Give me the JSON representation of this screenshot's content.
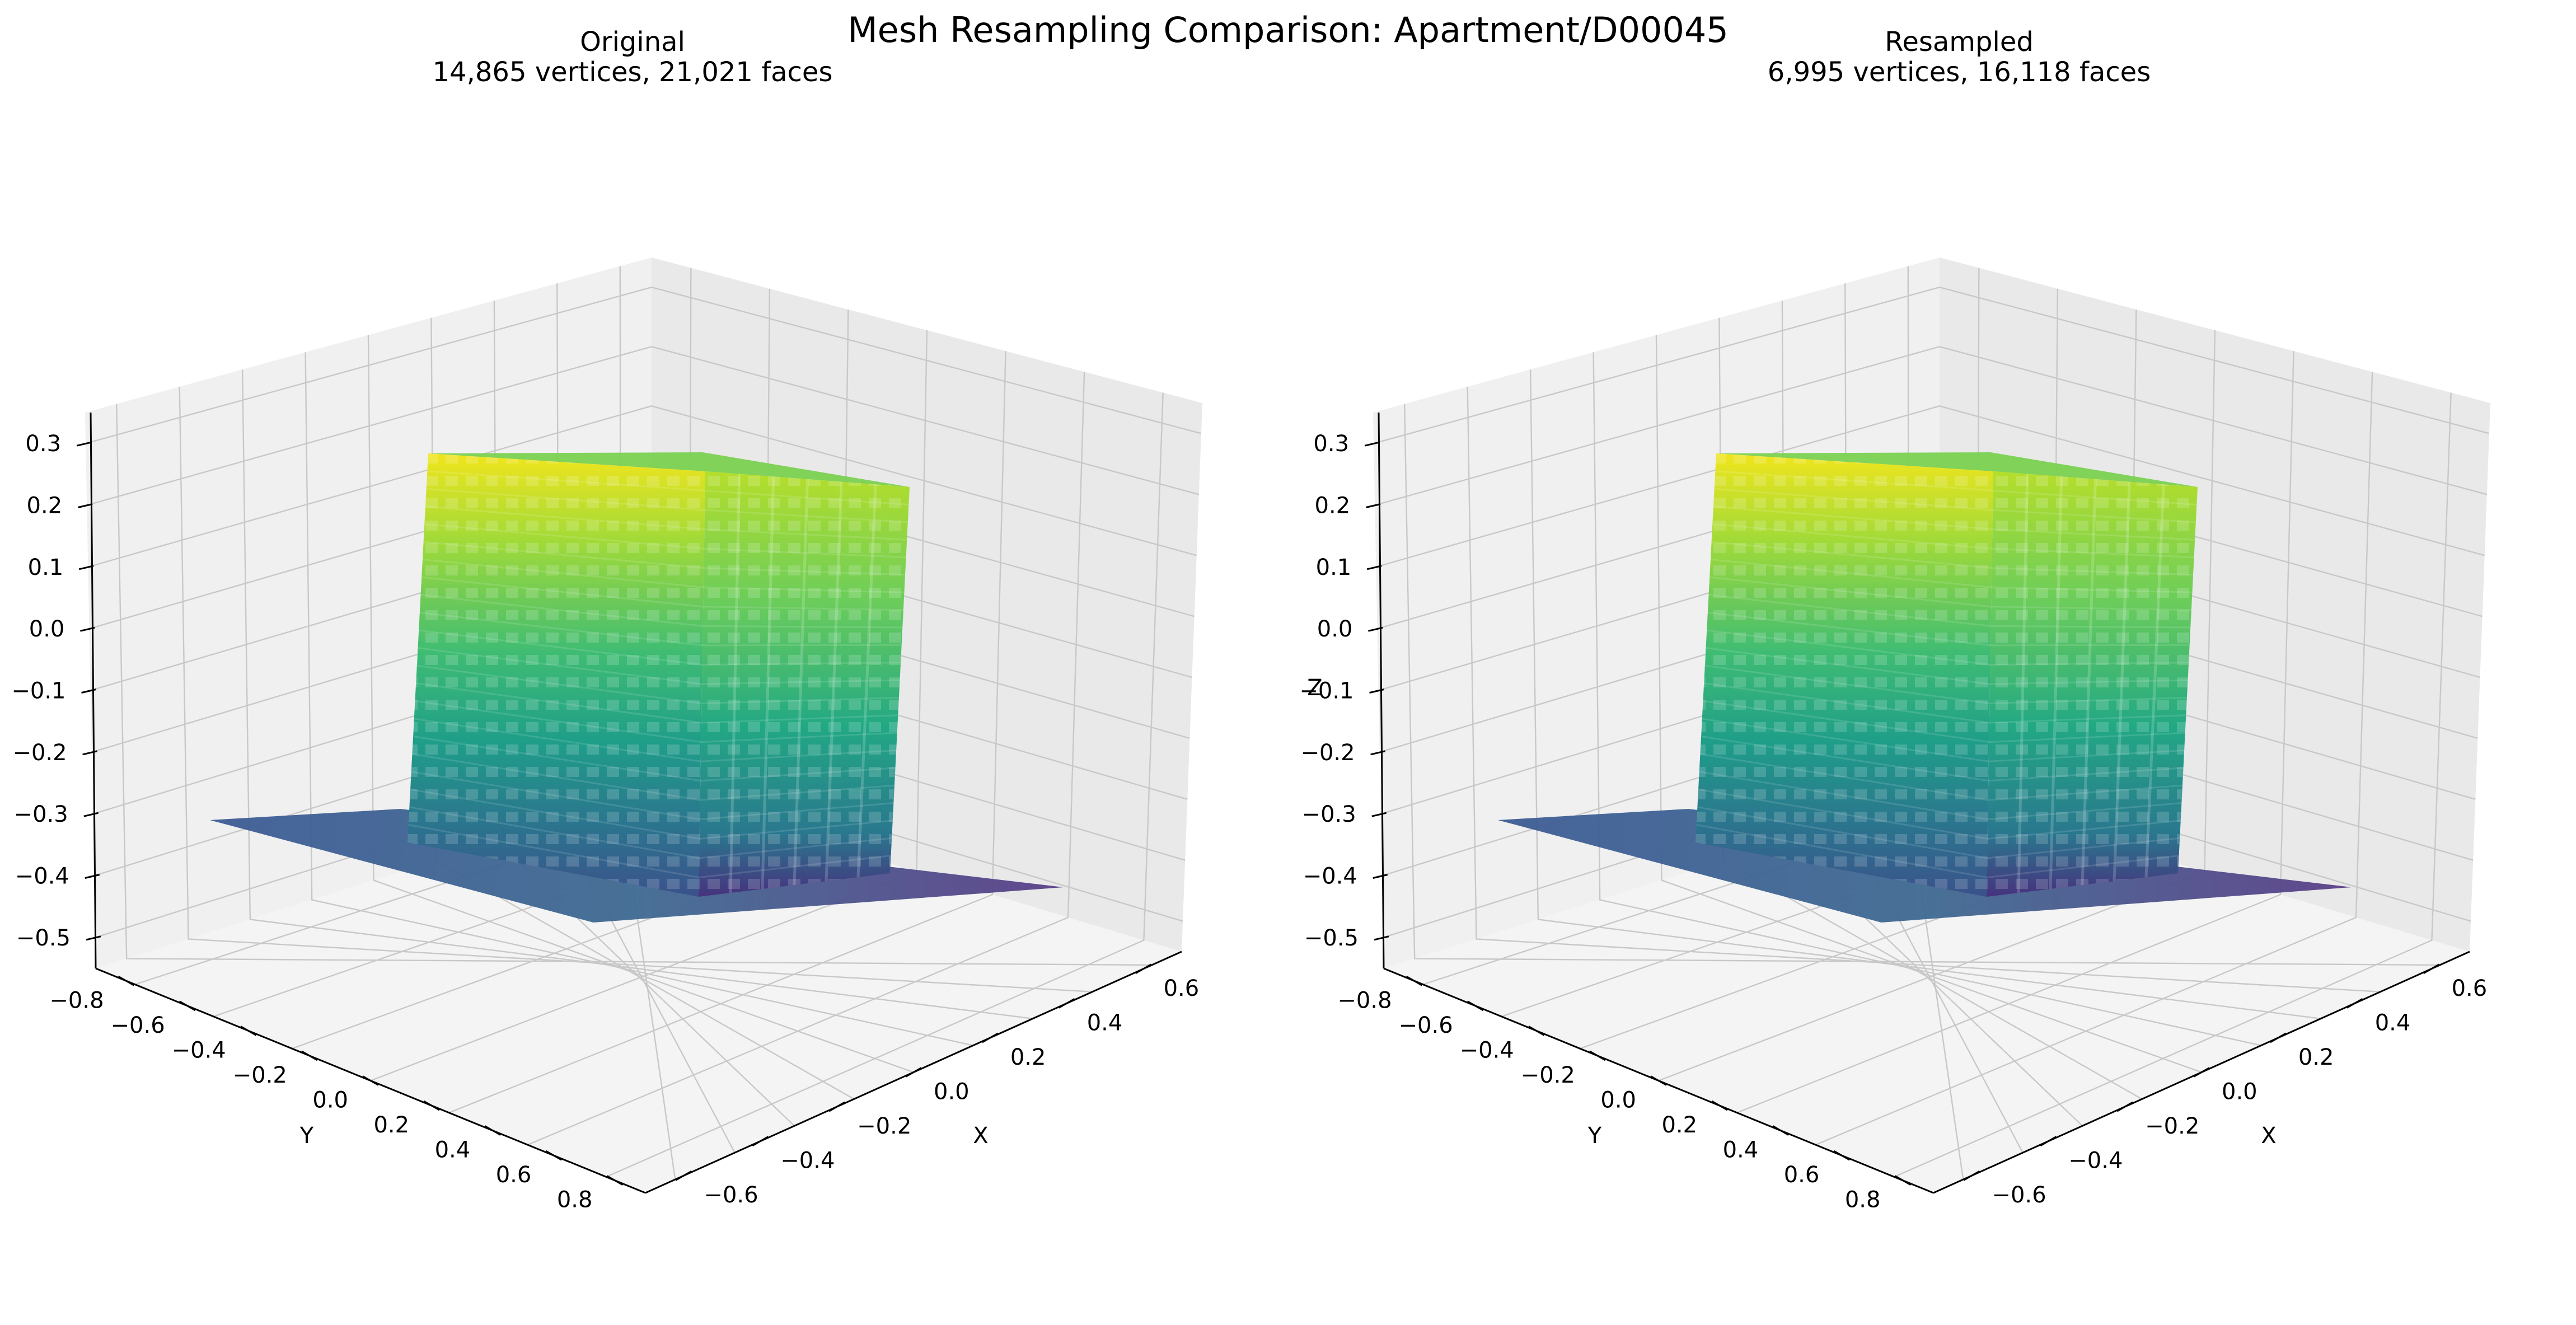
{
  "figure": {
    "title": "Mesh Resampling Comparison: Apartment/D00045"
  },
  "chart_data": [
    {
      "type": "surface3d",
      "panel": "left",
      "title": "Original",
      "subtitle": "14,865 vertices, 21,021 faces",
      "xlabel": "X",
      "ylabel": "Y",
      "zlabel": "",
      "x_ticks": [
        "−0.6",
        "−0.4",
        "−0.2",
        "0.0",
        "0.2",
        "0.4",
        "0.6"
      ],
      "y_ticks": [
        "−0.8",
        "−0.6",
        "−0.4",
        "−0.2",
        "0.0",
        "0.2",
        "0.4",
        "0.6",
        "0.8"
      ],
      "z_ticks": [
        "−0.5",
        "−0.4",
        "−0.3",
        "−0.2",
        "−0.1",
        "0.0",
        "0.1",
        "0.2",
        "0.3"
      ],
      "xlim": [
        -0.7,
        0.95
      ],
      "ylim": [
        -0.8,
        0.8
      ],
      "zlim": [
        -0.55,
        0.35
      ],
      "colormap": "viridis",
      "grid": true
    },
    {
      "type": "surface3d",
      "panel": "right",
      "title": "Resampled",
      "subtitle": "6,995 vertices, 16,118 faces",
      "xlabel": "X",
      "ylabel": "Y",
      "zlabel": "Z",
      "x_ticks": [
        "−0.6",
        "−0.4",
        "−0.2",
        "0.0",
        "0.2",
        "0.4",
        "0.6"
      ],
      "y_ticks": [
        "−0.8",
        "−0.6",
        "−0.4",
        "−0.2",
        "0.0",
        "0.2",
        "0.4",
        "0.6",
        "0.8"
      ],
      "z_ticks": [
        "−0.5",
        "−0.4",
        "−0.3",
        "−0.2",
        "−0.1",
        "0.0",
        "0.1",
        "0.2",
        "0.3"
      ],
      "xlim": [
        -0.7,
        0.95
      ],
      "ylim": [
        -0.8,
        0.8
      ],
      "zlim": [
        -0.55,
        0.35
      ],
      "colormap": "viridis",
      "grid": true
    }
  ]
}
